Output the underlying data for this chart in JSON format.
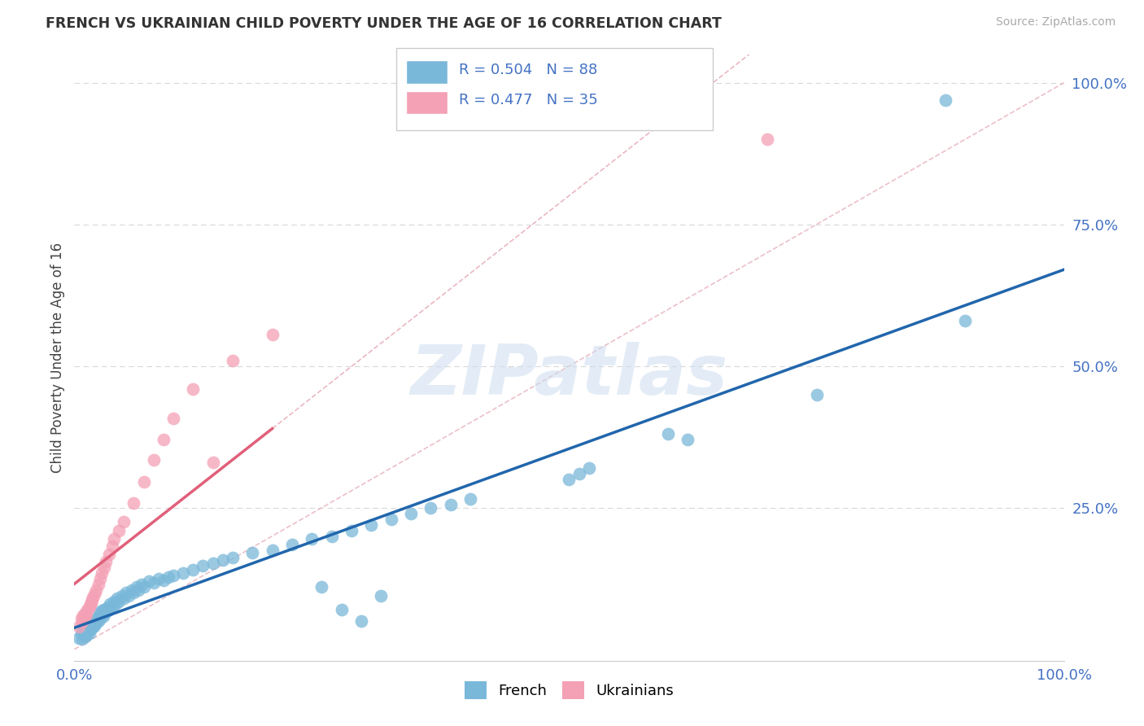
{
  "title": "FRENCH VS UKRAINIAN CHILD POVERTY UNDER THE AGE OF 16 CORRELATION CHART",
  "source": "Source: ZipAtlas.com",
  "ylabel": "Child Poverty Under the Age of 16",
  "watermark": "ZIPatlas",
  "french_R": 0.504,
  "french_N": 88,
  "ukr_R": 0.477,
  "ukr_N": 35,
  "french_scatter_color": "#7ab8d9",
  "ukr_scatter_color": "#f4a0b5",
  "french_line_color": "#2166ac",
  "ukr_line_color": "#e0607a",
  "diag_line_color": "#e8b0bb",
  "grid_color": "#d8d8d8",
  "title_color": "#333333",
  "source_color": "#aaaaaa",
  "axis_tick_color": "#4472c4",
  "watermark_color": "#ccddf0",
  "background_color": "#ffffff",
  "french_x": [
    0.005,
    0.007,
    0.008,
    0.009,
    0.01,
    0.01,
    0.011,
    0.012,
    0.013,
    0.013,
    0.014,
    0.015,
    0.015,
    0.016,
    0.017,
    0.018,
    0.018,
    0.019,
    0.02,
    0.02,
    0.021,
    0.022,
    0.023,
    0.024,
    0.025,
    0.025,
    0.026,
    0.027,
    0.028,
    0.029,
    0.03,
    0.031,
    0.032,
    0.033,
    0.034,
    0.035,
    0.036,
    0.038,
    0.04,
    0.042,
    0.043,
    0.045,
    0.048,
    0.05,
    0.052,
    0.055,
    0.058,
    0.06,
    0.063,
    0.065,
    0.068,
    0.07,
    0.075,
    0.08,
    0.085,
    0.09,
    0.095,
    0.1,
    0.11,
    0.12,
    0.13,
    0.14,
    0.15,
    0.16,
    0.18,
    0.2,
    0.22,
    0.24,
    0.26,
    0.28,
    0.3,
    0.32,
    0.34,
    0.36,
    0.38,
    0.4,
    0.5,
    0.51,
    0.52,
    0.6,
    0.62,
    0.75,
    0.88,
    0.9,
    0.25,
    0.27,
    0.29,
    0.31
  ],
  "french_y": [
    0.02,
    0.028,
    0.018,
    0.032,
    0.025,
    0.035,
    0.022,
    0.03,
    0.028,
    0.038,
    0.032,
    0.028,
    0.04,
    0.035,
    0.042,
    0.038,
    0.048,
    0.04,
    0.042,
    0.052,
    0.045,
    0.048,
    0.055,
    0.05,
    0.058,
    0.065,
    0.055,
    0.062,
    0.068,
    0.058,
    0.07,
    0.065,
    0.072,
    0.068,
    0.075,
    0.07,
    0.08,
    0.075,
    0.085,
    0.08,
    0.09,
    0.085,
    0.095,
    0.09,
    0.1,
    0.095,
    0.105,
    0.1,
    0.11,
    0.105,
    0.115,
    0.11,
    0.12,
    0.118,
    0.125,
    0.122,
    0.128,
    0.13,
    0.135,
    0.14,
    0.148,
    0.152,
    0.158,
    0.162,
    0.17,
    0.175,
    0.185,
    0.195,
    0.2,
    0.21,
    0.22,
    0.23,
    0.24,
    0.25,
    0.255,
    0.265,
    0.3,
    0.31,
    0.32,
    0.38,
    0.37,
    0.45,
    0.97,
    0.58,
    0.11,
    0.07,
    0.05,
    0.095
  ],
  "ukr_x": [
    0.005,
    0.007,
    0.008,
    0.009,
    0.01,
    0.011,
    0.012,
    0.013,
    0.015,
    0.016,
    0.017,
    0.018,
    0.019,
    0.02,
    0.022,
    0.024,
    0.026,
    0.028,
    0.03,
    0.032,
    0.035,
    0.038,
    0.04,
    0.045,
    0.05,
    0.06,
    0.07,
    0.08,
    0.09,
    0.1,
    0.12,
    0.14,
    0.16,
    0.2,
    0.7
  ],
  "ukr_y": [
    0.04,
    0.055,
    0.048,
    0.06,
    0.058,
    0.065,
    0.062,
    0.07,
    0.075,
    0.08,
    0.082,
    0.088,
    0.092,
    0.098,
    0.105,
    0.115,
    0.125,
    0.135,
    0.145,
    0.155,
    0.168,
    0.182,
    0.195,
    0.21,
    0.225,
    0.258,
    0.295,
    0.335,
    0.37,
    0.408,
    0.46,
    0.33,
    0.51,
    0.555,
    0.9
  ],
  "ytick_positions": [
    0.25,
    0.5,
    0.75,
    1.0
  ],
  "ytick_labels": [
    "25.0%",
    "50.0%",
    "75.0%",
    "100.0%"
  ]
}
